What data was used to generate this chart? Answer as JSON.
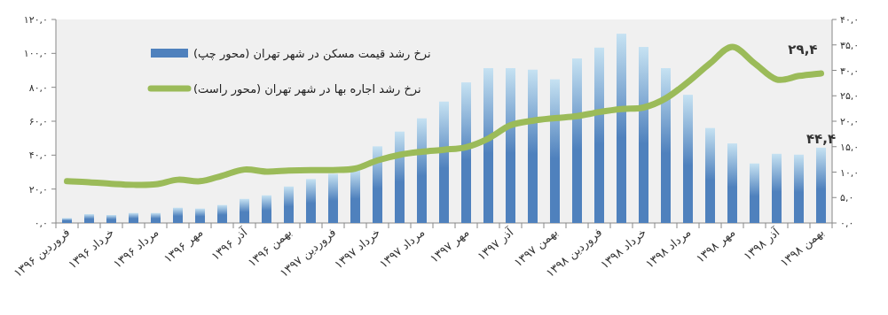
{
  "chart_data": {
    "type": "bar",
    "categories": [
      "فروردین ۱۳۹۶",
      null,
      "خرداد ۱۳۹۶",
      null,
      "مرداد ۱۳۹۶",
      null,
      "مهر ۱۳۹۶",
      null,
      "آذر ۱۳۹۶",
      null,
      "بهمن ۱۳۹۶",
      null,
      "فروردین ۱۳۹۷",
      null,
      "خرداد ۱۳۹۷",
      null,
      "مرداد ۱۳۹۷",
      null,
      "مهر ۱۳۹۷",
      null,
      "آذر ۱۳۹۷",
      null,
      "بهمن ۱۳۹۷",
      null,
      "فروردین ۱۳۹۸",
      null,
      "خرداد ۱۳۹۸",
      null,
      "مرداد ۱۳۹۸",
      null,
      "مهر ۱۳۹۸",
      null,
      "آذر ۱۳۹۸",
      null,
      "بهمن ۱۳۹۸"
    ],
    "series": [
      {
        "name": "نرخ رشد قیمت مسکن در شهر تهران (محور چپ)",
        "color": "#4f81bd",
        "values": [
          2.9,
          5.2,
          4.7,
          5.9,
          5.9,
          9.0,
          8.5,
          10.6,
          14.2,
          16.3,
          21.5,
          25.9,
          29.0,
          31.6,
          45.2,
          53.9,
          61.7,
          71.6,
          82.9,
          91.3,
          91.3,
          90.4,
          84.7,
          97,
          103.4,
          111.6,
          103.8,
          91.3,
          75.6,
          56.0,
          46.9,
          35.1,
          40.8,
          40.3,
          44.4
        ],
        "value_labels": [
          null,
          null,
          null,
          null,
          null,
          null,
          null,
          null,
          null,
          null,
          null,
          null,
          null,
          null,
          null,
          null,
          null,
          null,
          null,
          null,
          null,
          null,
          null,
          null,
          null,
          null,
          null,
          null,
          null,
          null,
          null,
          null,
          null,
          null,
          "۴۴,۴"
        ]
      },
      {
        "name": "نرخ رشد اجاره بها در شهر تهران (محور راست)",
        "color": "#9bbb59",
        "type": "line",
        "axis": "y2",
        "values": [
          8.2,
          8.0,
          7.7,
          7.5,
          7.6,
          8.5,
          8.2,
          9.3,
          10.5,
          10.1,
          10.3,
          10.4,
          10.4,
          10.7,
          12.3,
          13.4,
          14.0,
          14.4,
          14.9,
          16.6,
          19.2,
          20.1,
          20.6,
          21.0,
          21.8,
          22.4,
          22.7,
          24.5,
          27.7,
          31.4,
          34.6,
          31.4,
          28.2,
          28.9,
          29.4
        ],
        "value_labels": [
          null,
          null,
          null,
          null,
          null,
          null,
          null,
          null,
          null,
          null,
          null,
          null,
          null,
          null,
          null,
          null,
          null,
          null,
          null,
          null,
          null,
          null,
          null,
          null,
          null,
          null,
          null,
          null,
          null,
          null,
          null,
          null,
          null,
          null,
          "۲۹,۴"
        ]
      }
    ],
    "ylim": [
      0,
      120
    ],
    "yticks": [
      {
        "value": 0,
        "label": "۰,۰"
      },
      {
        "value": 20,
        "label": "۲۰,۰"
      },
      {
        "value": 40,
        "label": "۴۰,۰"
      },
      {
        "value": 60,
        "label": "۶۰,۰"
      },
      {
        "value": 80,
        "label": "۸۰,۰"
      },
      {
        "value": 100,
        "label": "۱۰۰,۰"
      },
      {
        "value": 120,
        "label": "۱۲۰,۰"
      }
    ],
    "y2lim": [
      0,
      40
    ],
    "y2ticks": [
      {
        "value": 0,
        "label": "۰,۰"
      },
      {
        "value": 5,
        "label": "۵,۰"
      },
      {
        "value": 10,
        "label": "۱۰,۰"
      },
      {
        "value": 15,
        "label": "۱۵,۰"
      },
      {
        "value": 20,
        "label": "۲۰,۰"
      },
      {
        "value": 25,
        "label": "۲۵,۰"
      },
      {
        "value": 30,
        "label": "۳۰,۰"
      },
      {
        "value": 35,
        "label": "۳۵,۰"
      },
      {
        "value": 40,
        "label": "۴۰,۰"
      }
    ],
    "legend": "top left",
    "grid": false
  }
}
